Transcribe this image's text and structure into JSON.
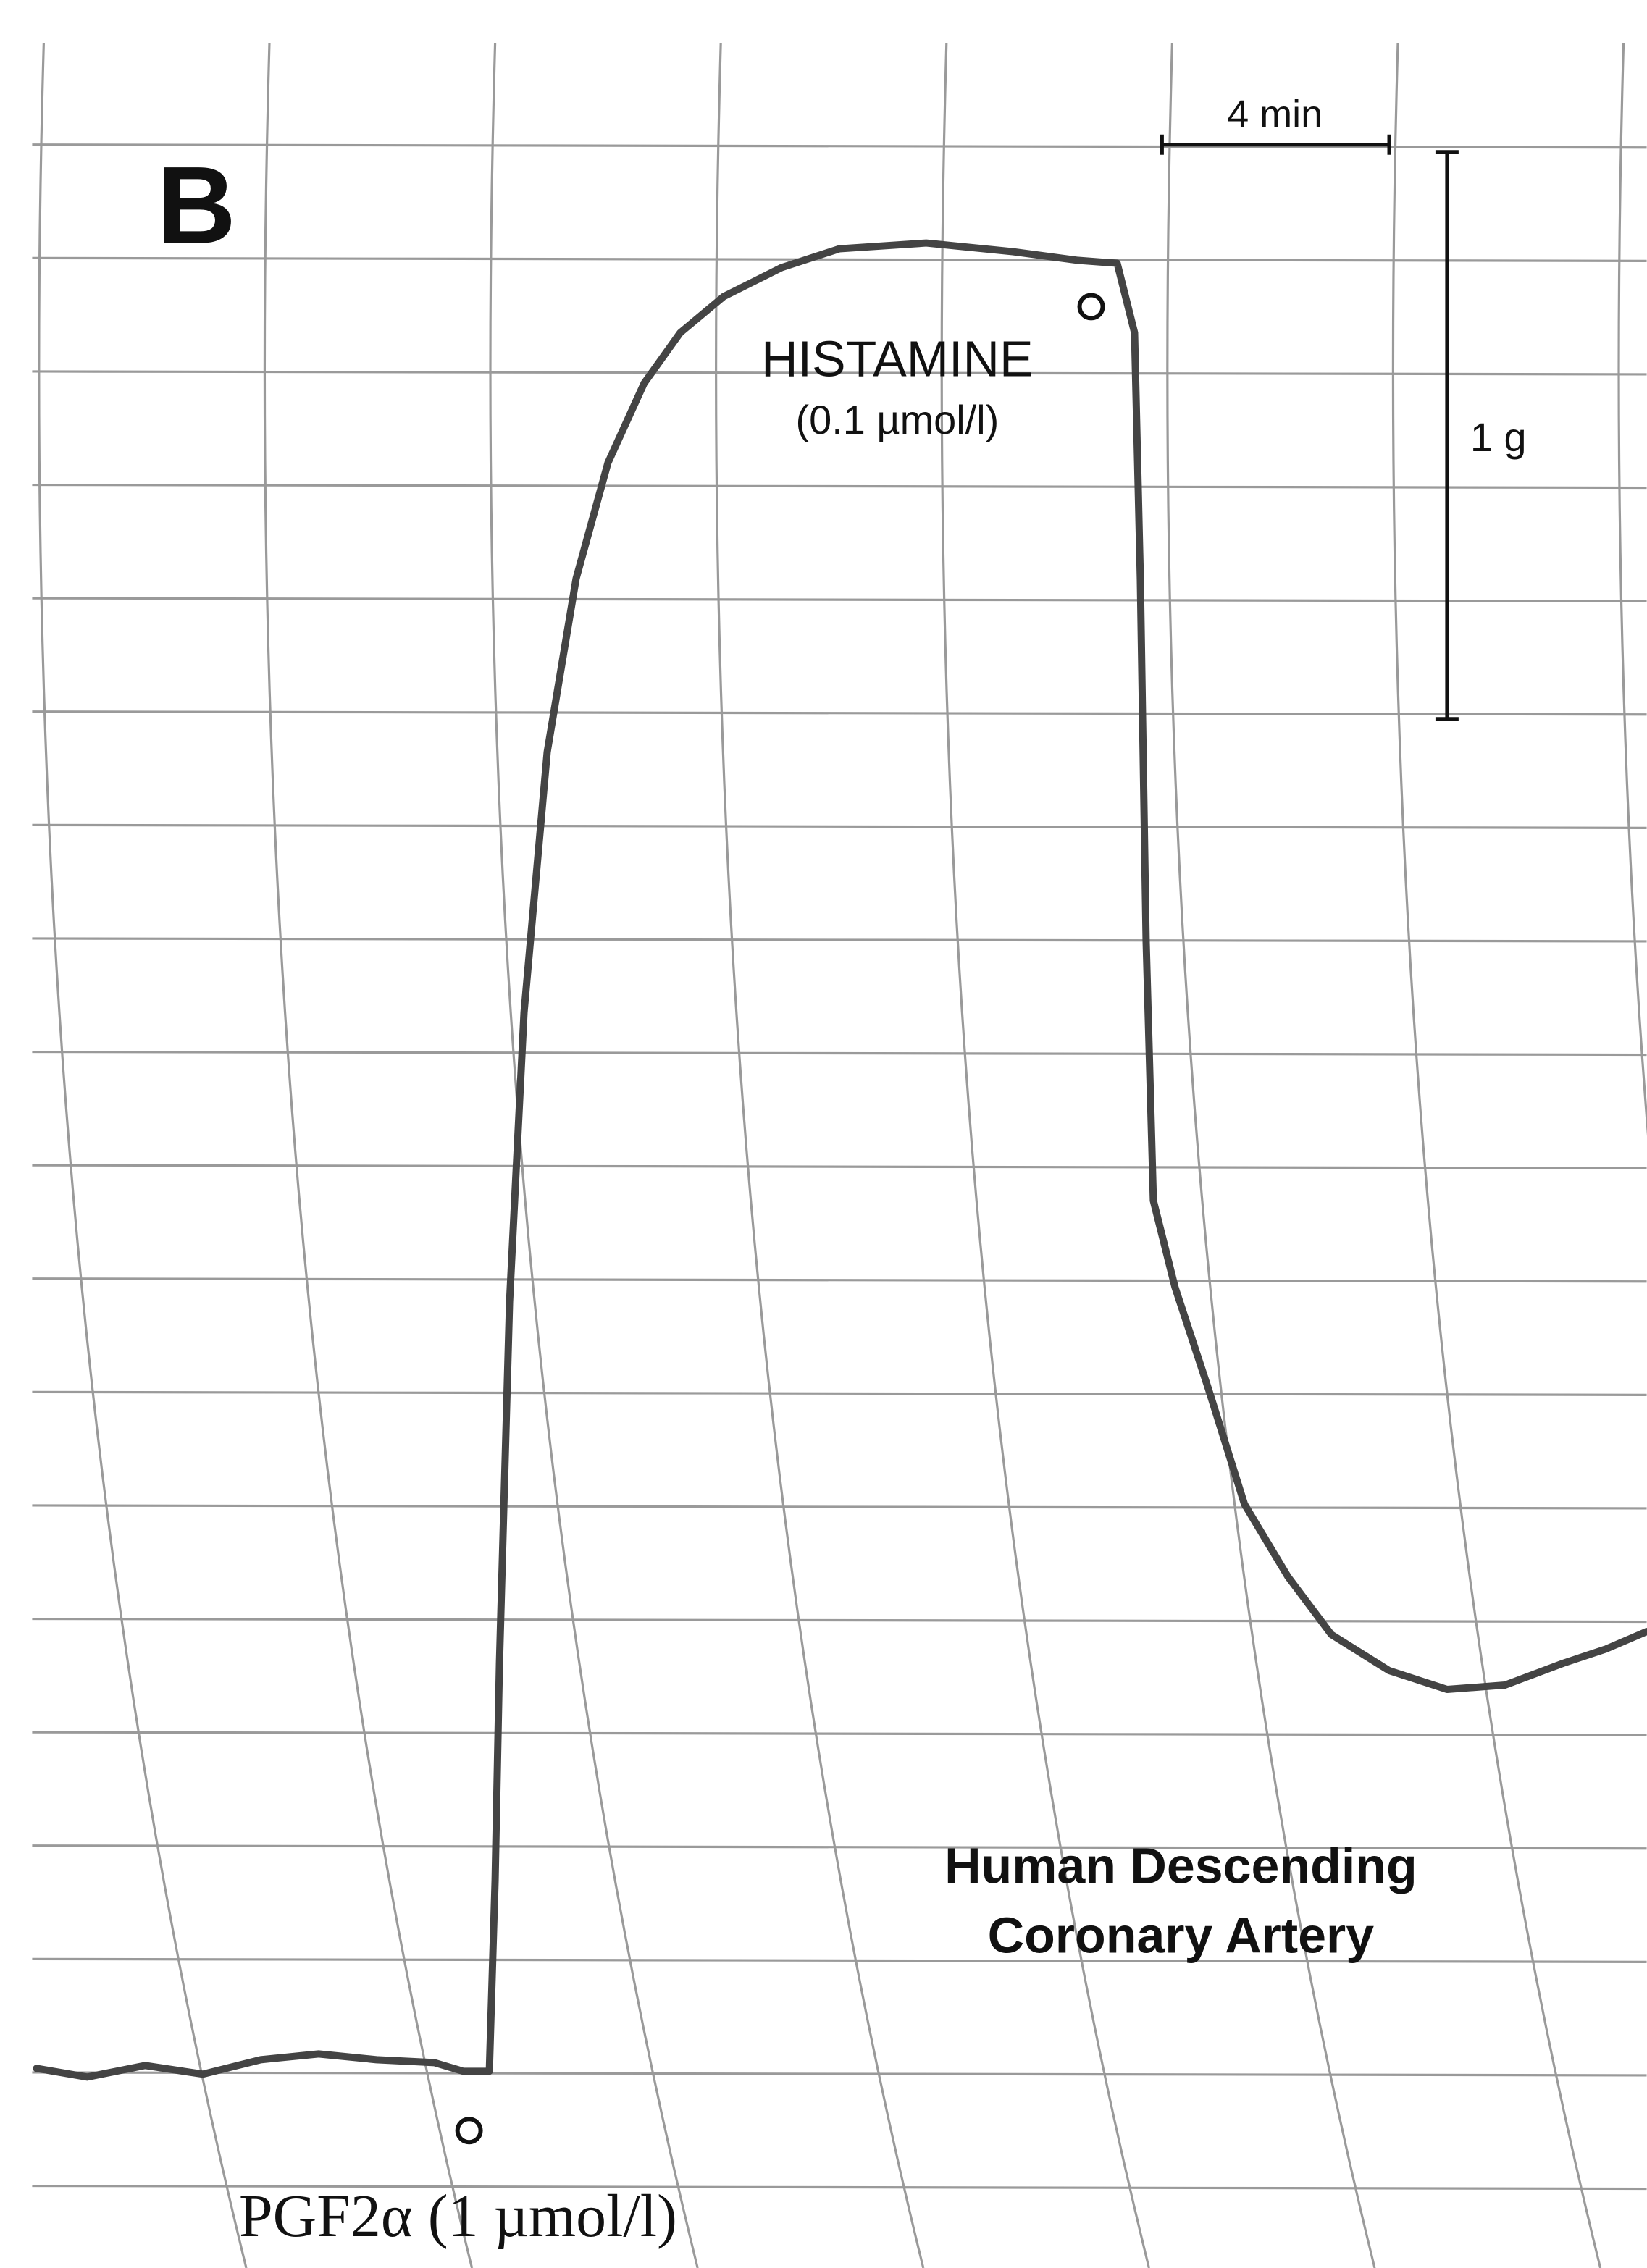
{
  "panel": {
    "label": "B"
  },
  "scale_bars": {
    "time": "4 min",
    "force": "1 g"
  },
  "annotations": {
    "histamine": "HISTAMINE",
    "histamine_dose": "(0.1 µmol/l)",
    "pgf": "PGF2α (1 µmol/l)"
  },
  "caption": {
    "line1": "Human Descending",
    "line2": "Coronary Artery"
  }
}
